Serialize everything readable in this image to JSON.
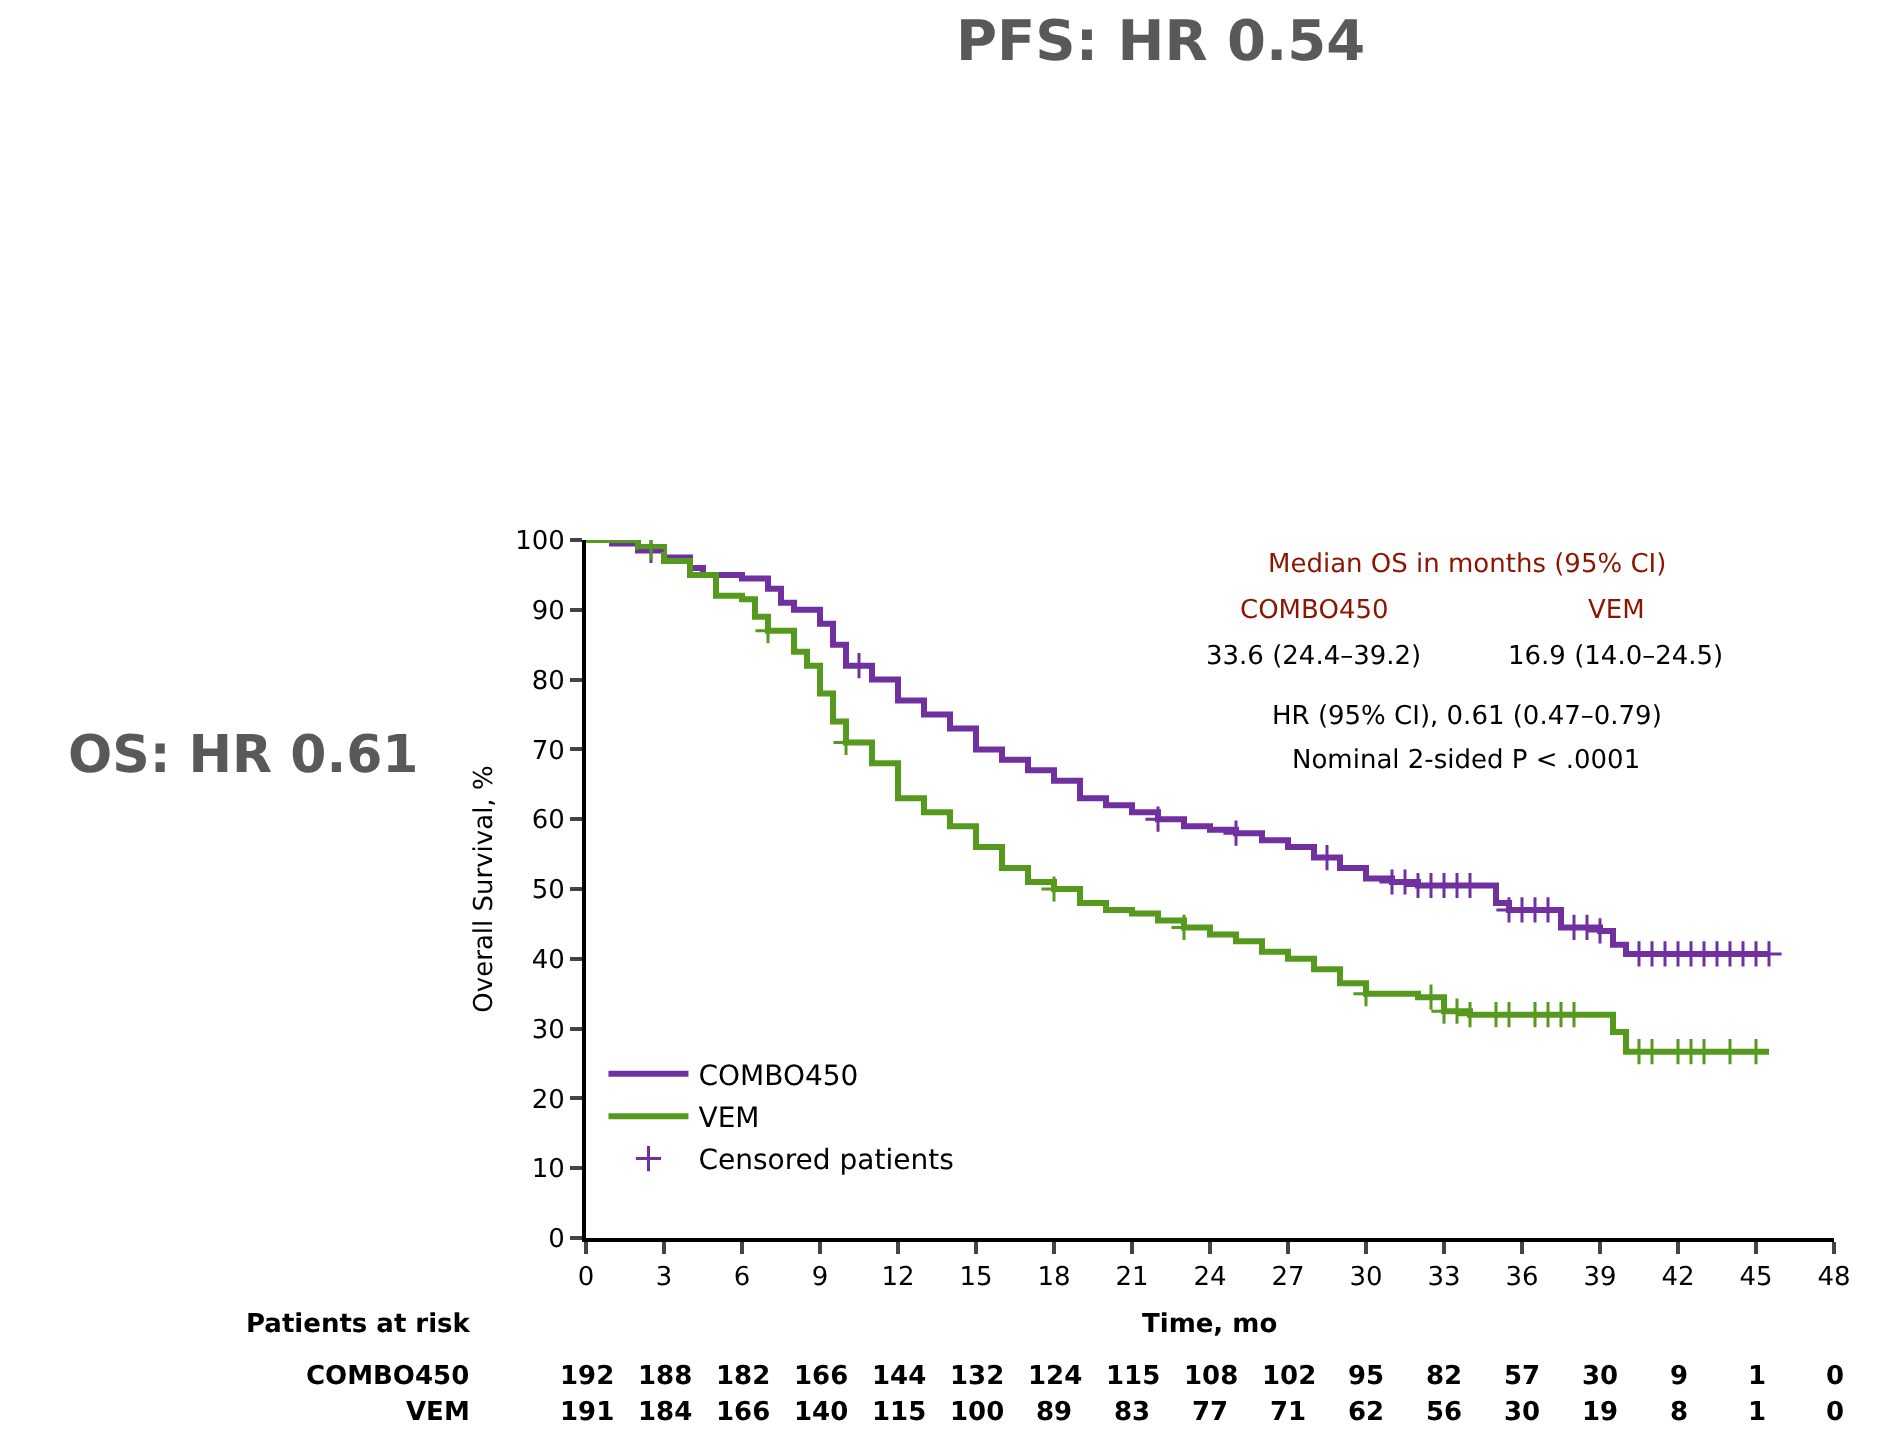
{
  "chart_data": {
    "type": "step",
    "xlabel": "Time, mo",
    "ylabel": "Overall Survival, %",
    "xlim": [
      0,
      48
    ],
    "xticks": [
      0,
      3,
      6,
      9,
      12,
      15,
      18,
      21,
      24,
      27,
      30,
      33,
      36,
      39,
      42,
      45,
      48
    ],
    "ylim": [
      0,
      100
    ],
    "yticks": [
      0,
      10,
      20,
      30,
      40,
      50,
      60,
      70,
      80,
      90,
      100
    ],
    "legend": "bottom left",
    "line_style": "solid",
    "series": [
      {
        "name": "COMBO450",
        "color": "#7030a0",
        "type": "step",
        "x": [
          0,
          1,
          2,
          3,
          4,
          4.5,
          6,
          7,
          7.5,
          8,
          9,
          9.5,
          10,
          11,
          12,
          13,
          14,
          15,
          16,
          17,
          18,
          19,
          20,
          21,
          22,
          23,
          24,
          25,
          26,
          27,
          28,
          29,
          30,
          31,
          32,
          33,
          34,
          35,
          35.5,
          37,
          37.5,
          39,
          39.5,
          40,
          45.5
        ],
        "values": [
          100,
          99.5,
          98.5,
          97.5,
          96,
          95,
          94.5,
          93,
          91,
          90,
          88,
          85,
          82,
          80,
          77,
          75,
          73,
          70,
          68.5,
          67,
          65.5,
          63,
          62,
          61,
          60,
          59,
          58.5,
          58,
          57,
          56,
          54.5,
          53,
          51.5,
          51,
          50.5,
          50.5,
          50.5,
          48,
          47,
          47,
          44.5,
          44,
          42,
          40.7,
          40.7
        ]
      },
      {
        "name": "VEM",
        "color": "#559a1e",
        "type": "step",
        "x": [
          0,
          2,
          3,
          4,
          5,
          6,
          6.5,
          7,
          8,
          8.5,
          9,
          9.5,
          10,
          11,
          12,
          13,
          14,
          15,
          16,
          17,
          18,
          19,
          20,
          21,
          22,
          23,
          24,
          25,
          26,
          27,
          28,
          29,
          30,
          31,
          32,
          33,
          34,
          39,
          39.5,
          40,
          45.5
        ],
        "values": [
          100,
          99,
          97,
          95,
          92,
          91.5,
          89,
          87,
          84,
          82,
          78,
          74,
          71,
          68,
          63,
          61,
          59,
          56,
          53,
          51,
          50,
          48,
          47,
          46.5,
          45.5,
          44.5,
          43.5,
          42.5,
          41,
          40,
          38.5,
          36.5,
          35,
          35,
          34.5,
          32.5,
          32,
          32,
          29.5,
          26.7,
          26.7
        ]
      },
      {
        "name": "Censored patients",
        "color": "#7030a0",
        "type": "scatter",
        "marker": "cross",
        "x": [
          2.5,
          10.5,
          22,
          25,
          28.5,
          31,
          31.5,
          32,
          32.5,
          33,
          33.5,
          34,
          35.5,
          36,
          36.5,
          37,
          38,
          38.5,
          39,
          40.5,
          41,
          41.5,
          42,
          42.5,
          43,
          43.5,
          44,
          44.5,
          45,
          45.5
        ],
        "values": [
          98.5,
          82,
          60,
          58,
          54.5,
          51,
          51,
          50.5,
          50.5,
          50.5,
          50.5,
          50.5,
          47,
          47,
          47,
          47,
          44.5,
          44.5,
          44,
          40.7,
          40.7,
          40.7,
          40.7,
          40.7,
          40.7,
          40.7,
          40.7,
          40.7,
          40.7,
          40.7
        ]
      },
      {
        "color": "#559a1e",
        "type": "scatter",
        "marker": "cross",
        "x": [
          2.5,
          7,
          10,
          18,
          23,
          30,
          32.5,
          33,
          33.5,
          34,
          35,
          35.5,
          36.5,
          37,
          37.5,
          38,
          40.5,
          41,
          42,
          42.5,
          43,
          44,
          45
        ],
        "values": [
          99,
          87,
          71,
          50,
          44.5,
          35,
          34.5,
          32.5,
          32.5,
          32,
          32,
          32,
          32,
          32,
          32,
          32,
          26.7,
          26.7,
          26.7,
          26.7,
          26.7,
          26.7,
          26.7
        ]
      }
    ],
    "annotations": [
      "PFS: HR 0.54",
      "OS: HR 0.61",
      "Median OS in months (95% CI)",
      "COMBO450",
      "VEM",
      "33.6 (24.4–39.2)",
      "16.9 (14.0–24.5)",
      "HR (95% CI), 0.61 (0.47–0.79)",
      "Nominal 2-sided P < .0001",
      "Patients at risk",
      "COMBO450",
      "192",
      "188",
      "182",
      "166",
      "144",
      "132",
      "124",
      "115",
      "108",
      "102",
      "95",
      "82",
      "57",
      "30",
      "9",
      "1",
      "0",
      "VEM",
      "191",
      "184",
      "166",
      "140",
      "115",
      "100",
      "89",
      "83",
      "77",
      "71",
      "62",
      "56",
      "30",
      "19",
      "8",
      "1",
      "0"
    ]
  }
}
